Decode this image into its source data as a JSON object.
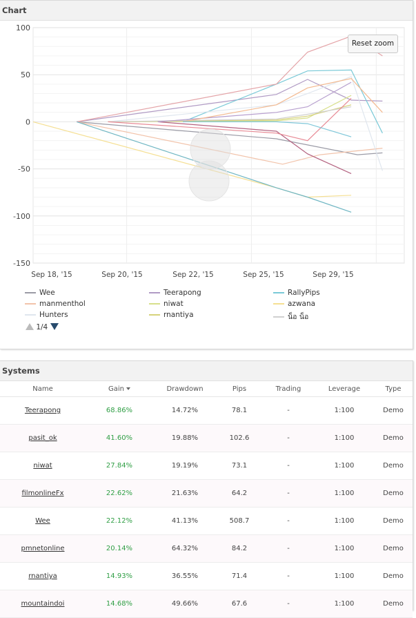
{
  "chart_panel": {
    "title": "Chart",
    "reset_zoom_label": "Reset zoom",
    "pager_text": "1/4"
  },
  "chart_data": {
    "type": "line",
    "y_ticks": [
      100,
      50,
      0,
      -50,
      -100,
      -150
    ],
    "x_ticks": [
      "Sep 18, '15",
      "Sep 20, '15",
      "Sep 22, '15",
      "Sep 25, '15",
      "Sep 29, '15"
    ],
    "ylim": [
      -150,
      100
    ],
    "grid": true,
    "legend_placement": "bottom",
    "series": [
      {
        "name": "Wee",
        "color": "#9a9aa5",
        "points": [
          [
            0.7,
            0
          ],
          [
            3.9,
            -18
          ],
          [
            5.2,
            -35
          ],
          [
            5.6,
            -33
          ]
        ]
      },
      {
        "name": "Teerapong",
        "color": "#b09ac4",
        "points": [
          [
            0.7,
            0
          ],
          [
            3.9,
            29
          ],
          [
            4.4,
            45
          ],
          [
            5.1,
            23
          ],
          [
            5.6,
            22
          ]
        ]
      },
      {
        "name": "RallyPips",
        "color": "#79c9d7",
        "points": [
          [
            2.4,
            0
          ],
          [
            3.9,
            40
          ],
          [
            4.4,
            54
          ],
          [
            5.1,
            55
          ],
          [
            5.6,
            -12
          ]
        ]
      },
      {
        "name": "manmenthol",
        "color": "#f2c3aa",
        "points": [
          [
            0.7,
            0
          ],
          [
            4.0,
            -45
          ],
          [
            4.6,
            -35
          ],
          [
            5.6,
            -28
          ]
        ]
      },
      {
        "name": "niwat",
        "color": "#d7df8a",
        "points": [
          [
            1.2,
            0
          ],
          [
            3.9,
            1
          ],
          [
            4.4,
            4
          ],
          [
            5.1,
            28
          ]
        ]
      },
      {
        "name": "azwana",
        "color": "#f5df92",
        "points": [
          [
            0.0,
            0
          ],
          [
            3.9,
            -70
          ],
          [
            4.4,
            -80
          ],
          [
            5.1,
            -78
          ]
        ]
      },
      {
        "name": "Hunters",
        "color": "#dfe6ee",
        "points": [
          [
            1.2,
            0
          ],
          [
            3.9,
            18
          ],
          [
            4.4,
            30
          ],
          [
            5.1,
            48
          ],
          [
            5.6,
            -52
          ]
        ]
      },
      {
        "name": "rnantiya",
        "color": "#d6d27a",
        "points": [
          [
            1.2,
            0
          ],
          [
            3.9,
            2
          ],
          [
            4.4,
            6
          ],
          [
            5.1,
            18
          ]
        ]
      },
      {
        "name": "น็อ น็อ",
        "color": "#d0d0d0",
        "points": [
          [
            1.2,
            0
          ],
          [
            3.9,
            3
          ],
          [
            4.4,
            8
          ],
          [
            5.1,
            16
          ]
        ]
      },
      {
        "name": "",
        "color": "#e4a3a7",
        "points": [
          [
            0.7,
            0
          ],
          [
            3.9,
            40
          ],
          [
            4.4,
            74
          ],
          [
            5.1,
            91
          ],
          [
            5.6,
            70
          ]
        ]
      },
      {
        "name": "",
        "color": "#b3617f",
        "points": [
          [
            2.0,
            0
          ],
          [
            3.9,
            -10
          ],
          [
            4.4,
            -34
          ],
          [
            5.1,
            -55
          ]
        ]
      },
      {
        "name": "",
        "color": "#6fb6c3",
        "points": [
          [
            0.7,
            0
          ],
          [
            3.9,
            -70
          ],
          [
            4.4,
            -80
          ],
          [
            5.1,
            -96
          ]
        ]
      },
      {
        "name": "",
        "color": "#b79fce",
        "points": [
          [
            2.0,
            0
          ],
          [
            3.9,
            10
          ],
          [
            4.4,
            16
          ],
          [
            5.1,
            42
          ]
        ]
      },
      {
        "name": "",
        "color": "#f3b98f",
        "points": [
          [
            2.4,
            0
          ],
          [
            3.9,
            18
          ],
          [
            4.4,
            36
          ],
          [
            5.1,
            46
          ],
          [
            5.6,
            10
          ]
        ]
      },
      {
        "name": "",
        "color": "#e88a95",
        "points": [
          [
            1.2,
            0
          ],
          [
            3.9,
            -12
          ],
          [
            4.4,
            -20
          ],
          [
            5.1,
            25
          ]
        ]
      },
      {
        "name": "",
        "color": "#7fc7d9",
        "points": [
          [
            2.4,
            0
          ],
          [
            3.9,
            0
          ],
          [
            4.4,
            -2
          ],
          [
            5.1,
            -16
          ]
        ]
      }
    ]
  },
  "systems": {
    "title": "Systems",
    "columns": [
      "Name",
      "Gain",
      "Drawdown",
      "Pips",
      "Trading",
      "Leverage",
      "Type"
    ],
    "rows": [
      {
        "name": "Teerapong",
        "gain": "68.86%",
        "drawdown": "14.72%",
        "pips": "78.1",
        "trading": "-",
        "leverage": "1:100",
        "type": "Demo"
      },
      {
        "name": "pasit_ok",
        "gain": "41.60%",
        "drawdown": "19.88%",
        "pips": "102.6",
        "trading": "-",
        "leverage": "1:100",
        "type": "Demo"
      },
      {
        "name": "niwat",
        "gain": "27.84%",
        "drawdown": "19.19%",
        "pips": "73.1",
        "trading": "-",
        "leverage": "1:100",
        "type": "Demo"
      },
      {
        "name": "filmonlineFx",
        "gain": "22.62%",
        "drawdown": "21.63%",
        "pips": "64.2",
        "trading": "-",
        "leverage": "1:100",
        "type": "Demo"
      },
      {
        "name": "Wee",
        "gain": "22.12%",
        "drawdown": "41.13%",
        "pips": "508.7",
        "trading": "-",
        "leverage": "1:100",
        "type": "Demo"
      },
      {
        "name": "pmnetonline",
        "gain": "20.14%",
        "drawdown": "64.32%",
        "pips": "84.2",
        "trading": "-",
        "leverage": "1:100",
        "type": "Demo"
      },
      {
        "name": "rnantiya",
        "gain": "14.93%",
        "drawdown": "36.55%",
        "pips": "71.4",
        "trading": "-",
        "leverage": "1:100",
        "type": "Demo"
      },
      {
        "name": "mountaindoi",
        "gain": "14.68%",
        "drawdown": "49.66%",
        "pips": "67.6",
        "trading": "-",
        "leverage": "1:100",
        "type": "Demo"
      }
    ]
  }
}
